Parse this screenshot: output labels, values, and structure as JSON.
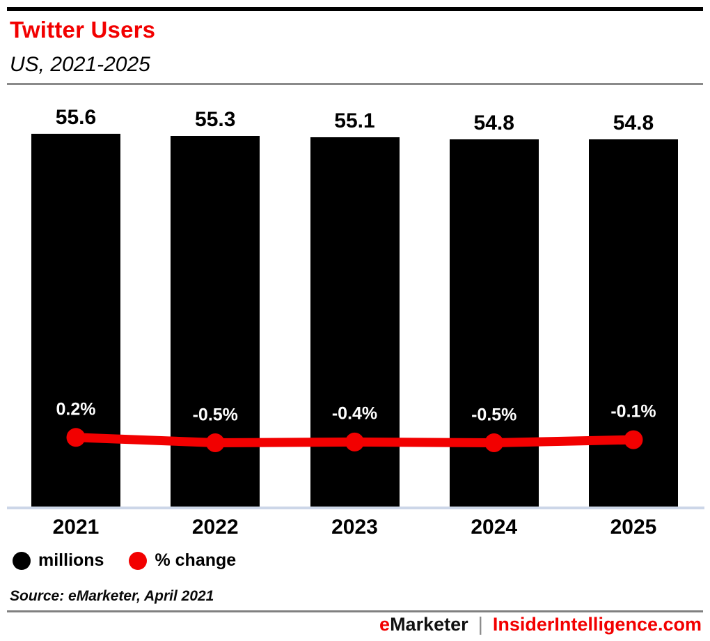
{
  "header": {
    "title": "Twitter Users",
    "subtitle": "US, 2021-2025"
  },
  "chart_data": {
    "type": "bar",
    "categories": [
      "2021",
      "2022",
      "2023",
      "2024",
      "2025"
    ],
    "series": [
      {
        "name": "millions",
        "type": "bar",
        "color": "#000000",
        "values": [
          55.6,
          55.3,
          55.1,
          54.8,
          54.8
        ],
        "labels": [
          "55.6",
          "55.3",
          "55.1",
          "54.8",
          "54.8"
        ]
      },
      {
        "name": "% change",
        "type": "line",
        "color": "#f20000",
        "values": [
          0.2,
          -0.5,
          -0.4,
          -0.5,
          -0.1
        ],
        "labels": [
          "0.2%",
          "-0.5%",
          "-0.4%",
          "-0.5%",
          "-0.1%"
        ]
      }
    ],
    "title": "Twitter Users",
    "subtitle": "US, 2021-2025",
    "xlabel": "",
    "ylabel": "",
    "grid": false,
    "legend_position": "bottom"
  },
  "legend": {
    "items": [
      {
        "label": "millions",
        "color": "#000000"
      },
      {
        "label": "% change",
        "color": "#f20000"
      }
    ]
  },
  "source": {
    "text": "Source: eMarketer, April 2021"
  },
  "footer": {
    "brand_first_letter": "e",
    "brand_rest": "Marketer",
    "separator": "|",
    "site": "InsiderIntelligence.com"
  },
  "colors": {
    "accent_red": "#f20000",
    "bar_black": "#000000",
    "axis_line": "#ccd6e8",
    "rule_gray": "#8a8a8a"
  }
}
